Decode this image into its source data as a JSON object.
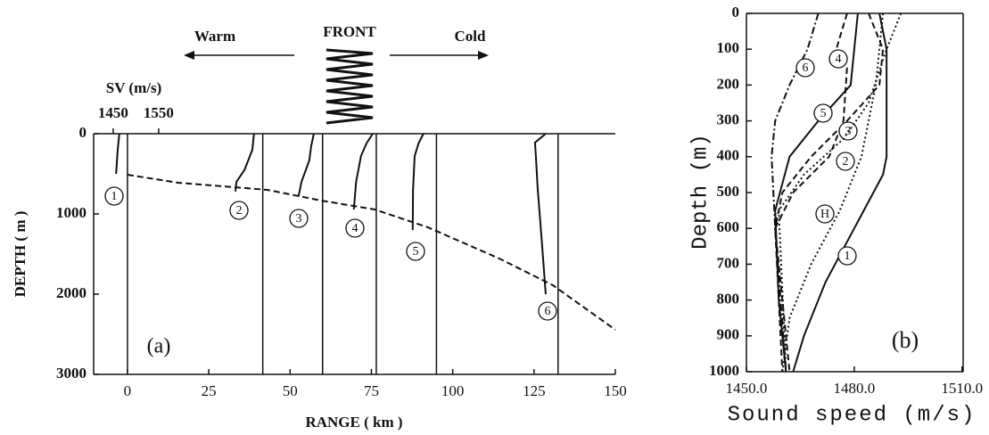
{
  "chart_data": [
    {
      "type": "line",
      "title": "(a)",
      "annotations": {
        "front": "FRONT",
        "warm": "Warm",
        "cold": "Cold"
      },
      "xlabel": "RANGE ( km )",
      "ylabel": "DEPTH ( m )",
      "xlim": [
        -10.4,
        150
      ],
      "ylim": [
        3000,
        0
      ],
      "xticks": [
        0,
        25,
        50,
        75,
        100,
        125,
        150
      ],
      "yticks": [
        0,
        1000,
        2000,
        3000
      ],
      "sv_axis": {
        "label": "SV (m/s)",
        "lim": [
          1407,
          2554
        ],
        "ticks": [
          1450,
          1550
        ]
      },
      "station_ranges": [
        0,
        41.6,
        60,
        76.5,
        95,
        132.4
      ],
      "boundary": {
        "style": "dashed",
        "x": [
          0,
          15.6,
          43,
          59.5,
          76,
          92.4,
          114.3,
          130.8,
          150
        ],
        "values": [
          511,
          611,
          700,
          833,
          944,
          1167,
          1556,
          1889,
          2444
        ]
      },
      "series": [
        {
          "name": "1",
          "color": "#111111",
          "style": "solid",
          "x": [
            -2.5,
            -3,
            -3.5
          ],
          "values": [
            0,
            200,
            500
          ]
        },
        {
          "name": "2",
          "color": "#111111",
          "style": "solid",
          "x": [
            38.9,
            38.4,
            36,
            33.5,
            33.2
          ],
          "values": [
            0,
            200,
            450,
            600,
            720
          ]
        },
        {
          "name": "3",
          "color": "#111111",
          "style": "solid",
          "x": [
            57.3,
            56.5,
            55.9,
            53.5,
            52.6
          ],
          "values": [
            0,
            150,
            333,
            600,
            780
          ]
        },
        {
          "name": "4",
          "color": "#111111",
          "style": "solid",
          "x": [
            75.4,
            73.5,
            71.8,
            70.3,
            69.6
          ],
          "values": [
            0,
            120,
            278,
            600,
            944
          ]
        },
        {
          "name": "5",
          "color": "#111111",
          "style": "solid",
          "x": [
            91,
            89.5,
            88.3,
            87.8,
            87.7
          ],
          "values": [
            0,
            120,
            278,
            700,
            1200
          ]
        },
        {
          "name": "6",
          "color": "#111111",
          "style": "solid",
          "x": [
            128.6,
            125.3,
            125.6,
            126.1,
            127.5,
            128.6
          ],
          "values": [
            0,
            111,
            300,
            667,
            1400,
            2000
          ]
        }
      ]
    },
    {
      "type": "line",
      "title": "(b)",
      "xlabel": "Sound speed (m/s)",
      "ylabel": "Depth (m)",
      "xlim": [
        1450,
        1510.3
      ],
      "ylim": [
        1000,
        0
      ],
      "xticks": [
        {
          "value": 1450,
          "label": "1450.0"
        },
        {
          "value": 1480,
          "label": "1480.0"
        },
        {
          "value": 1510,
          "label": "1510.0"
        }
      ],
      "yticks": [
        0,
        100,
        200,
        300,
        400,
        500,
        600,
        700,
        800,
        900,
        1000
      ],
      "series": [
        {
          "name": "1",
          "color": "#111111",
          "style": "solid",
          "x": [
            1487,
            1489,
            1489,
            1488,
            1480,
            1472,
            1466,
            1463
          ],
          "values": [
            0,
            100,
            400,
            450,
            600,
            750,
            900,
            1000
          ]
        },
        {
          "name": "5",
          "color": "#111111",
          "style": "solid",
          "x": [
            1481,
            1480,
            1479,
            1470,
            1462,
            1458,
            1459,
            1461
          ],
          "values": [
            0,
            100,
            200,
            300,
            400,
            550,
            800,
            1000
          ]
        },
        {
          "name": "6",
          "color": "#111111",
          "style": "dashdot",
          "x": [
            1470,
            1467,
            1462,
            1458,
            1457,
            1458,
            1461
          ],
          "values": [
            0,
            100,
            200,
            300,
            400,
            600,
            1000
          ]
        },
        {
          "name": "4",
          "color": "#111111",
          "style": "dashed",
          "x": [
            1478,
            1475,
            1478,
            1477,
            1473,
            1463,
            1458,
            1460
          ],
          "values": [
            0,
            100,
            150,
            300,
            400,
            500,
            600,
            1000
          ]
        },
        {
          "name": "3",
          "color": "#111111",
          "style": "dashed",
          "x": [
            1484,
            1488,
            1487,
            1478,
            1468,
            1460,
            1458,
            1462
          ],
          "values": [
            0,
            100,
            200,
            300,
            400,
            500,
            600,
            1000
          ]
        },
        {
          "name": "2",
          "color": "#111111",
          "style": "dotted",
          "x": [
            1493,
            1489,
            1484,
            1477,
            1466,
            1459,
            1461
          ],
          "values": [
            0,
            100,
            250,
            350,
            450,
            550,
            1000
          ]
        },
        {
          "name": "H",
          "color": "#111111",
          "style": "dotted",
          "x": [
            1488,
            1487,
            1486,
            1482,
            1476,
            1468,
            1462,
            1460
          ],
          "values": [
            0,
            100,
            200,
            400,
            550,
            700,
            850,
            1000
          ]
        }
      ]
    }
  ]
}
